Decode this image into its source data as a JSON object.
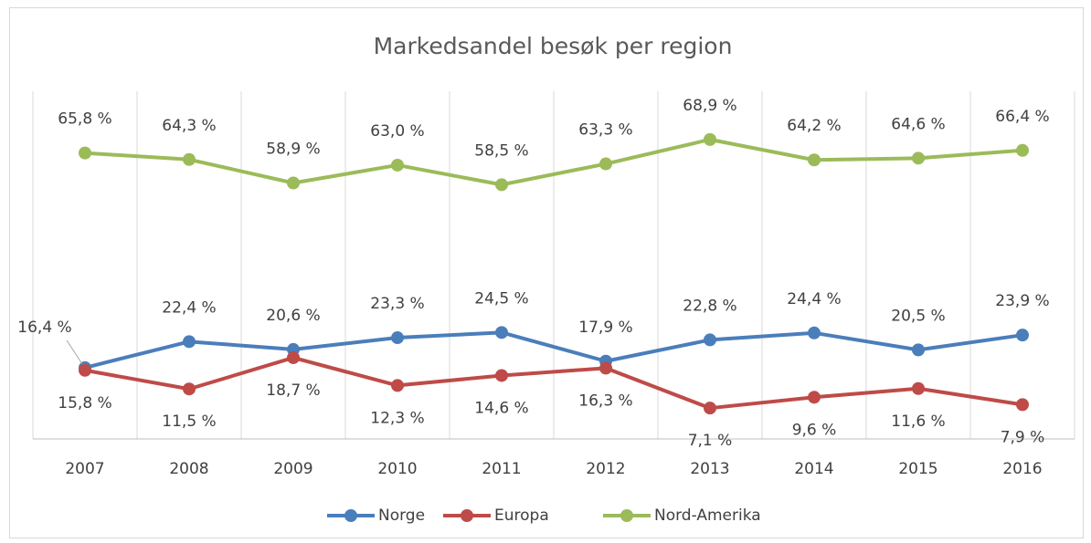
{
  "chart_data": {
    "type": "line",
    "title": "Markedsandel besøk per region",
    "categories": [
      "2007",
      "2008",
      "2009",
      "2010",
      "2011",
      "2012",
      "2013",
      "2014",
      "2015",
      "2016"
    ],
    "series": [
      {
        "name": "Norge",
        "color": "#4a7ebb",
        "values": [
          16.4,
          22.4,
          20.6,
          23.3,
          24.5,
          17.9,
          22.8,
          24.4,
          20.5,
          23.9
        ],
        "value_labels": [
          "16,4 %",
          "22,4 %",
          "20,6 %",
          "23,3 %",
          "24,5 %",
          "17,9 %",
          "22,8 %",
          "24,4 %",
          "20,5 %",
          "23,9 %"
        ]
      },
      {
        "name": "Europa",
        "color": "#be4b48",
        "values": [
          15.8,
          11.5,
          18.7,
          12.3,
          14.6,
          16.3,
          7.1,
          9.6,
          11.6,
          7.9
        ],
        "value_labels": [
          "15,8 %",
          "11,5 %",
          "18,7 %",
          "12,3 %",
          "14,6 %",
          "16,3 %",
          "7,1 %",
          "9,6 %",
          "11,6 %",
          "7,9 %"
        ]
      },
      {
        "name": "Nord-Amerika",
        "color": "#9bbb59",
        "values": [
          65.8,
          64.3,
          58.9,
          63.0,
          58.5,
          63.3,
          68.9,
          64.2,
          64.6,
          66.4
        ],
        "value_labels": [
          "65,8 %",
          "64,3 %",
          "58,9 %",
          "63,0 %",
          "58,5 %",
          "63,3 %",
          "68,9 %",
          "64,2 %",
          "64,6 %",
          "66,4 %"
        ]
      }
    ],
    "ylim": [
      0,
      80
    ],
    "legend": "bottom"
  }
}
